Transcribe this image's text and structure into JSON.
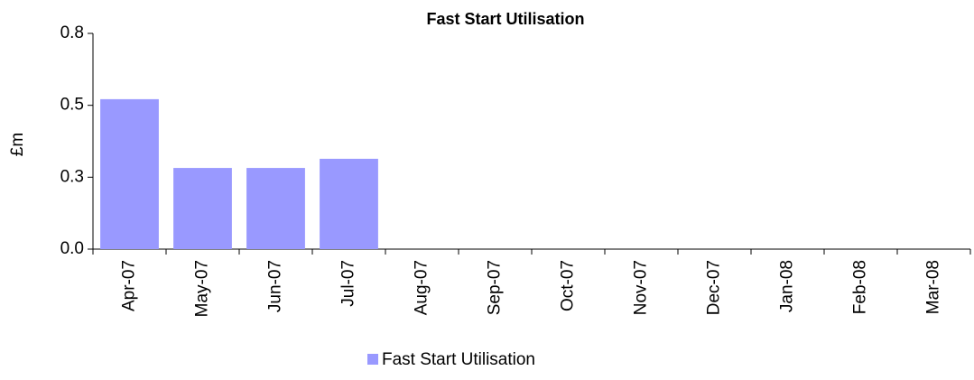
{
  "chart_data": {
    "type": "bar",
    "title": "Fast Start Utilisation",
    "y_label": "£m",
    "categories": [
      "Apr-07",
      "May-07",
      "Jun-07",
      "Jul-07",
      "Aug-07",
      "Sep-07",
      "Oct-07",
      "Nov-07",
      "Dec-07",
      "Jan-08",
      "Feb-08",
      "Mar-08"
    ],
    "series": [
      {
        "name": "Fast Start Utilisation",
        "color": "#9999ff",
        "values": [
          0.556,
          0.301,
          0.301,
          0.335,
          null,
          null,
          null,
          null,
          null,
          null,
          null,
          null
        ]
      }
    ],
    "ylim": [
      0,
      0.8
    ],
    "yticks": [
      {
        "value": 0,
        "label": "0.0"
      },
      {
        "value": 0.2667,
        "label": "0.3"
      },
      {
        "value": 0.5333,
        "label": "0.5"
      },
      {
        "value": 0.8,
        "label": "0.8"
      }
    ],
    "grid": false,
    "legend": "bottom"
  }
}
